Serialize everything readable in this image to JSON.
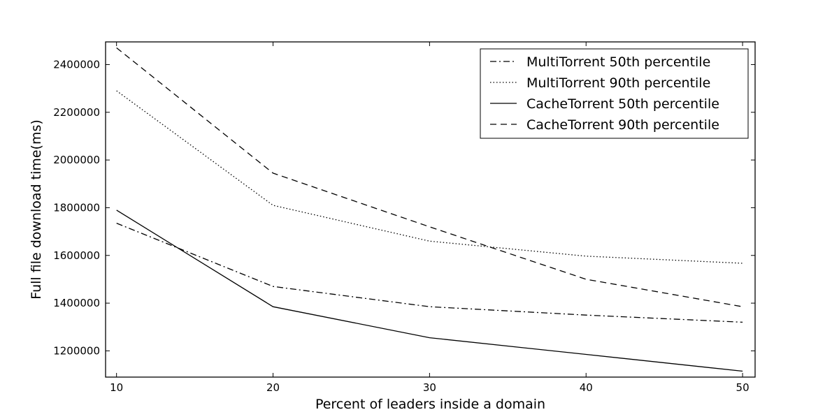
{
  "chart_data": {
    "type": "line",
    "title": "",
    "xlabel": "Percent of leaders inside a domain",
    "ylabel": "Full file download time(ms)",
    "x": [
      10,
      20,
      30,
      40,
      50
    ],
    "xlim": [
      9.3,
      50.8
    ],
    "ylim": [
      1090000,
      2495000
    ],
    "xticks": [
      10,
      20,
      30,
      40,
      50
    ],
    "xtick_labels": [
      "10",
      "20",
      "30",
      "40",
      "50"
    ],
    "yticks": [
      1200000,
      1400000,
      1600000,
      1800000,
      2000000,
      2200000,
      2400000
    ],
    "ytick_labels": [
      "1200000",
      "1400000",
      "1600000",
      "1800000",
      "2000000",
      "2200000",
      "2400000"
    ],
    "grid": false,
    "legend_position": "top-right",
    "series": [
      {
        "name": "MultiTorrent 50th percentile",
        "style": "dashdot",
        "color": "#000000",
        "values": [
          1735000,
          1470000,
          1385000,
          1350000,
          1320000
        ]
      },
      {
        "name": "MultiTorrent 90th percentile",
        "style": "dotted",
        "color": "#000000",
        "values": [
          2290000,
          1810000,
          1660000,
          1597000,
          1567000
        ]
      },
      {
        "name": "CacheTorrent 50th percentile",
        "style": "solid",
        "color": "#000000",
        "values": [
          1790000,
          1385000,
          1255000,
          1185000,
          1115000
        ]
      },
      {
        "name": "CacheTorrent 90th percentile",
        "style": "dashed",
        "color": "#000000",
        "values": [
          2470000,
          1945000,
          1720000,
          1500000,
          1385000
        ]
      }
    ]
  }
}
